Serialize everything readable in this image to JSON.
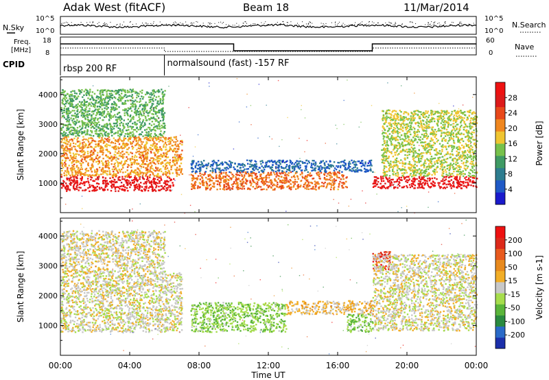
{
  "header": {
    "station": "Adak West (fitACF)",
    "beam": "Beam 18",
    "date": "11/Mar/2014"
  },
  "strip_labels": {
    "nsky": "N.Sky",
    "nsearch": "N.Search",
    "freq_line1": "Freq.",
    "freq_line2": "[MHz]",
    "nave": "Nave",
    "cpid": "CPID",
    "nsky_ticks": [
      "10^5",
      "10^0"
    ],
    "nsearch_ticks": [
      "10^5",
      "10^0"
    ],
    "freq_ticks": [
      "18",
      "8"
    ],
    "nave_ticks": [
      "60",
      "0"
    ]
  },
  "cpid_segments": [
    {
      "label": "rbsp 200 RF",
      "start": "00:00"
    },
    {
      "label": "normalsound (fast) -157 RF",
      "start": "06:00"
    }
  ],
  "colors": {
    "power_scale": [
      "#1a1acc",
      "#1f59c6",
      "#2e7d8f",
      "#3f9a64",
      "#77c14b",
      "#f0c531",
      "#f0871f",
      "#e8481a",
      "#dd1a1a",
      "#ee1111"
    ],
    "velocity_scale": [
      "#1b2faa",
      "#2a6ac8",
      "#2a8a40",
      "#5ab53a",
      "#a6dd4c",
      "#c8c8c8",
      "#f2ae27",
      "#e88a1e",
      "#e85a1e",
      "#dd2a1a",
      "#ee1111"
    ]
  },
  "chart_data": [
    {
      "type": "heatmap",
      "name": "power",
      "ylabel": "Slant Range [km]",
      "xlabel": "",
      "colorbar_label": "Power [dB]",
      "colorbar_ticks": [
        "28",
        "24",
        "20",
        "16",
        "12",
        "8",
        "4"
      ],
      "colorbar_range": [
        0,
        32
      ],
      "y_ticks": [
        1000,
        2000,
        3000,
        4000
      ],
      "ylim": [
        0,
        4600
      ],
      "x_ticks": [
        "00:00",
        "04:00",
        "08:00",
        "12:00",
        "16:00",
        "20:00",
        "00:00"
      ],
      "xlim_hours": [
        0,
        24
      ],
      "regions": [
        {
          "t0": 0.0,
          "t1": 6.5,
          "r0": 750,
          "r1": 1250,
          "value": 29
        },
        {
          "t0": 0.0,
          "t1": 7.0,
          "r0": 1250,
          "r1": 2600,
          "value": 20
        },
        {
          "t0": 0.0,
          "t1": 6.0,
          "r0": 2600,
          "r1": 4200,
          "value": 13
        },
        {
          "t0": 7.5,
          "t1": 16.5,
          "r0": 800,
          "r1": 1400,
          "value": 22
        },
        {
          "t0": 7.5,
          "t1": 18.0,
          "r0": 1400,
          "r1": 1800,
          "value": 6
        },
        {
          "t0": 18.0,
          "t1": 24.0,
          "r0": 850,
          "r1": 1250,
          "value": 29
        },
        {
          "t0": 18.5,
          "t1": 24.0,
          "r0": 1250,
          "r1": 3500,
          "value": 16
        }
      ]
    },
    {
      "type": "heatmap",
      "name": "velocity",
      "ylabel": "Slant Range [km]",
      "xlabel": "Time UT",
      "colorbar_label": "Velocity [m s-1]",
      "colorbar_ticks": [
        "200",
        "100",
        "50",
        "15",
        "-15",
        "-50",
        "-100",
        "-200"
      ],
      "colorbar_range": [
        -250,
        250
      ],
      "y_ticks": [
        1000,
        2000,
        3000,
        4000
      ],
      "ylim": [
        0,
        4600
      ],
      "x_ticks": [
        "00:00",
        "04:00",
        "08:00",
        "12:00",
        "16:00",
        "20:00",
        "00:00"
      ],
      "xlim_hours": [
        0,
        24
      ],
      "regions": [
        {
          "t0": 0.0,
          "t1": 7.0,
          "r0": 800,
          "r1": 2800,
          "value": 0
        },
        {
          "t0": 0.0,
          "t1": 6.0,
          "r0": 2800,
          "r1": 4200,
          "value": 5
        },
        {
          "t0": 7.5,
          "t1": 13.0,
          "r0": 800,
          "r1": 1800,
          "value": -60
        },
        {
          "t0": 13.0,
          "t1": 18.0,
          "r0": 1400,
          "r1": 1850,
          "value": 35
        },
        {
          "t0": 16.5,
          "t1": 18.0,
          "r0": 800,
          "r1": 1400,
          "value": -60
        },
        {
          "t0": 18.0,
          "t1": 19.0,
          "r0": 2900,
          "r1": 3500,
          "value": 180
        },
        {
          "t0": 18.0,
          "t1": 24.0,
          "r0": 850,
          "r1": 3400,
          "value": 0
        }
      ]
    }
  ]
}
